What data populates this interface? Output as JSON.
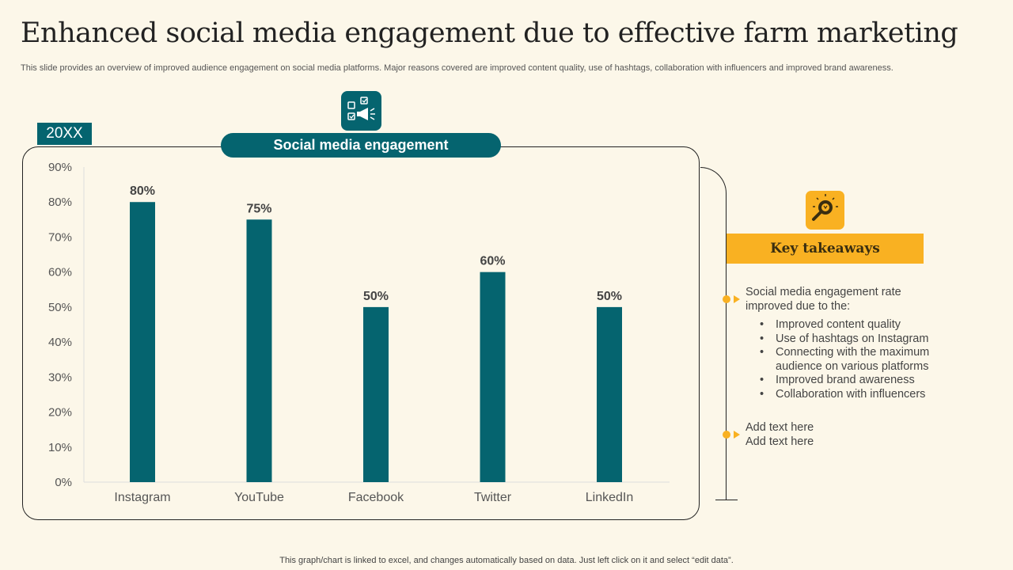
{
  "title": "Enhanced social media engagement due to effective farm marketing",
  "subtitle": "This slide provides an overview of improved audience engagement on social media platforms. Major reasons covered are improved content quality, use of hashtags, collaboration with influencers and improved brand awareness.",
  "year_badge": "20XX",
  "pill_label": "Social media engagement",
  "key_takeaways": {
    "heading": "Key takeaways",
    "intro": "Social media engagement rate improved due to the:",
    "bullets": [
      "Improved content quality",
      "Use of hashtags on Instagram",
      "Connecting with the maximum audience on various platforms",
      "Improved brand awareness",
      "Collaboration with influencers"
    ],
    "placeholder_1": "Add text here",
    "placeholder_2": "Add text here"
  },
  "footer": "This graph/chart is linked to excel,  and changes automatically based on data. Just left click on it and select “edit data”.",
  "colors": {
    "accent": "#05646f",
    "highlight": "#f9b122",
    "background": "#fcf7e9"
  },
  "icons": {
    "top": "megaphone-checklist-icon",
    "takeaways": "lightbulb-magnifier-icon"
  },
  "chart_data": {
    "type": "bar",
    "title": "Social media engagement",
    "categories": [
      "Instagram",
      "YouTube",
      "Facebook",
      "Twitter",
      "LinkedIn"
    ],
    "values": [
      80,
      75,
      50,
      60,
      50
    ],
    "value_labels": [
      "80%",
      "75%",
      "50%",
      "60%",
      "50%"
    ],
    "ylim": [
      0,
      90
    ],
    "yticks": [
      "0%",
      "10%",
      "20%",
      "30%",
      "40%",
      "50%",
      "60%",
      "70%",
      "80%",
      "90%"
    ],
    "xlabel": "",
    "ylabel": "",
    "grid": false
  }
}
